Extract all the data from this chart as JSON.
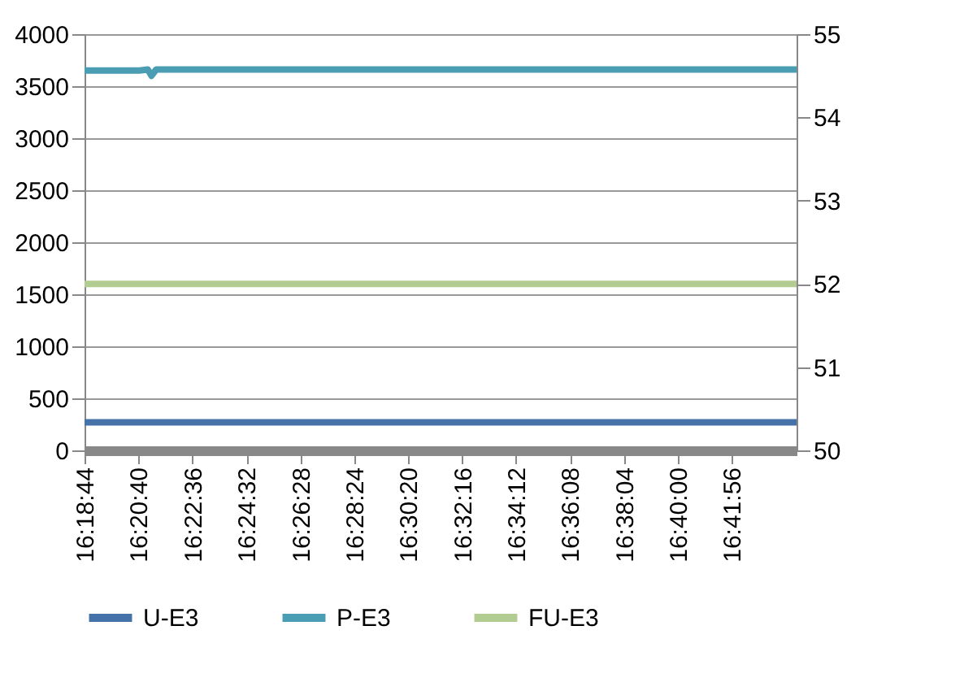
{
  "chart_data": {
    "type": "line",
    "xlim": [
      16.3122,
      16.7375
    ],
    "xticks": [
      {
        "value": 16.312222,
        "label": "16:18:44"
      },
      {
        "value": 16.344444,
        "label": "16:20:40"
      },
      {
        "value": 16.376667,
        "label": "16:22:36"
      },
      {
        "value": 16.408889,
        "label": "16:24:32"
      },
      {
        "value": 16.441111,
        "label": "16:26:28"
      },
      {
        "value": 16.473333,
        "label": "16:28:24"
      },
      {
        "value": 16.505556,
        "label": "16:30:20"
      },
      {
        "value": 16.537778,
        "label": "16:32:16"
      },
      {
        "value": 16.57,
        "label": "16:34:12"
      },
      {
        "value": 16.602222,
        "label": "16:36:08"
      },
      {
        "value": 16.634444,
        "label": "16:38:04"
      },
      {
        "value": 16.666667,
        "label": "16:40:00"
      },
      {
        "value": 16.698889,
        "label": "16:41:56"
      }
    ],
    "ylim": [
      0,
      4000
    ],
    "yticks": [
      0,
      500,
      1000,
      1500,
      2000,
      2500,
      3000,
      3500,
      4000
    ],
    "y2lim": [
      50,
      55
    ],
    "y2ticks": [
      50,
      51,
      52,
      53,
      54,
      55
    ],
    "grid": "y",
    "legend": "bottom",
    "line_style": "solid",
    "marker": "none",
    "series": [
      {
        "name": "U-E3",
        "color": "#4672aa",
        "x": [
          16.3122,
          16.45,
          16.6,
          16.7375
        ],
        "values": [
          270,
          270,
          270,
          270
        ]
      },
      {
        "name": "P-E3",
        "color": "#4a9db3",
        "x": [
          16.3122,
          16.345,
          16.35,
          16.3522,
          16.355,
          16.5,
          16.7375
        ],
        "values": [
          3650,
          3650,
          3660,
          3600,
          3660,
          3660,
          3660
        ]
      },
      {
        "name": "FU-E3",
        "color": "#b3cc91",
        "axis": "y2",
        "x": [
          16.3122,
          16.45,
          16.6,
          16.7375
        ],
        "values": [
          52.0,
          52.0,
          52.0,
          52.0
        ]
      }
    ]
  }
}
